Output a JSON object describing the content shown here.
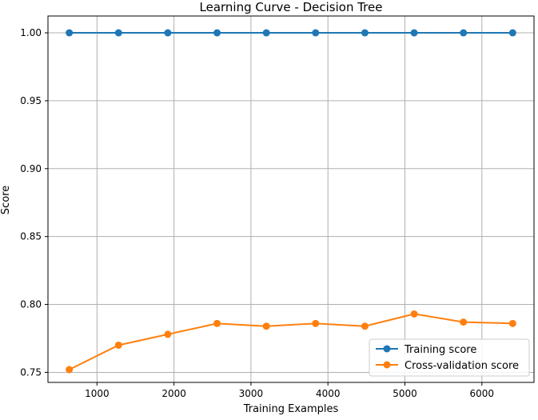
{
  "chart_data": {
    "type": "line",
    "title": "Learning Curve - Decision Tree",
    "xlabel": "Training Examples",
    "ylabel": "Score",
    "x": [
      640,
      1280,
      1920,
      2560,
      3200,
      3840,
      4480,
      5120,
      5760,
      6400
    ],
    "series": [
      {
        "name": "Training score",
        "color": "#1f77b4",
        "values": [
          1.0,
          1.0,
          1.0,
          1.0,
          1.0,
          1.0,
          1.0,
          1.0,
          1.0,
          1.0
        ]
      },
      {
        "name": "Cross-validation score",
        "color": "#ff7f0e",
        "values": [
          0.752,
          0.77,
          0.778,
          0.786,
          0.784,
          0.786,
          0.784,
          0.793,
          0.787,
          0.786
        ]
      }
    ],
    "xlim": [
      363,
      6677
    ],
    "ylim": [
      0.7426,
      1.0124
    ],
    "xticks": [
      1000,
      2000,
      3000,
      4000,
      5000,
      6000
    ],
    "xtick_labels": [
      "1000",
      "2000",
      "3000",
      "4000",
      "5000",
      "6000"
    ],
    "yticks": [
      0.75,
      0.8,
      0.85,
      0.9,
      0.95,
      1.0
    ],
    "ytick_labels": [
      "0.75",
      "0.80",
      "0.85",
      "0.90",
      "0.95",
      "1.00"
    ],
    "grid": true,
    "legend_position": "lower-right"
  }
}
